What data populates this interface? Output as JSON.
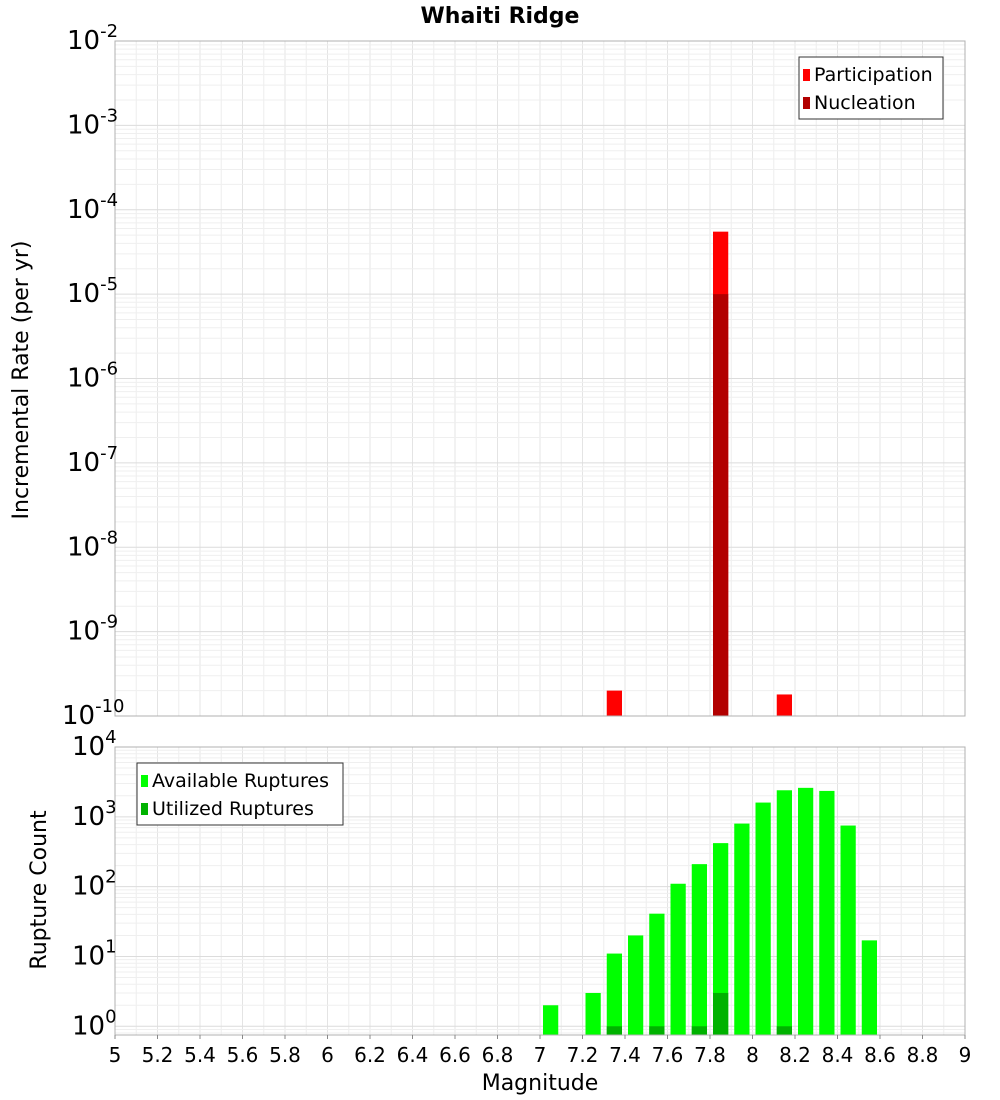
{
  "chart_data": [
    {
      "type": "bar",
      "title": "Whaiti Ridge",
      "xlabel": "",
      "ylabel": "Incremental Rate (per yr)",
      "y_scale": "log",
      "ylim": [
        1e-10,
        0.01
      ],
      "y_ticks": [
        {
          "base": "10",
          "exp": "-10"
        },
        {
          "base": "10",
          "exp": "-9"
        },
        {
          "base": "10",
          "exp": "-8"
        },
        {
          "base": "10",
          "exp": "-7"
        },
        {
          "base": "10",
          "exp": "-6"
        },
        {
          "base": "10",
          "exp": "-5"
        },
        {
          "base": "10",
          "exp": "-4"
        },
        {
          "base": "10",
          "exp": "-3"
        },
        {
          "base": "10",
          "exp": "-2"
        }
      ],
      "xlim": [
        5,
        9
      ],
      "grid": true,
      "legend_position": "top-right",
      "series": [
        {
          "name": "Participation",
          "color": "#ff0000",
          "points": [
            {
              "x": 7.35,
              "y": 2e-10
            },
            {
              "x": 7.85,
              "y": 5.5e-05
            },
            {
              "x": 8.15,
              "y": 1.8e-10
            }
          ]
        },
        {
          "name": "Nucleation",
          "color": "#b20000",
          "points": [
            {
              "x": 7.85,
              "y": 1e-05
            }
          ]
        }
      ]
    },
    {
      "type": "bar",
      "title": "",
      "xlabel": "Magnitude",
      "ylabel": "Rupture Count",
      "y_scale": "log",
      "ylim": [
        0.75,
        10000
      ],
      "y_ticks": [
        {
          "value": 1,
          "base": "10",
          "exp": "0"
        },
        {
          "value": 10,
          "base": "10",
          "exp": "1"
        },
        {
          "value": 100,
          "base": "10",
          "exp": "2"
        },
        {
          "value": 1000,
          "base": "10",
          "exp": "3"
        },
        {
          "value": 10000,
          "base": "10",
          "exp": "4"
        }
      ],
      "xlim": [
        5,
        9
      ],
      "x_ticks": [
        "5",
        "5.2",
        "5.4",
        "5.6",
        "5.8",
        "6",
        "6.2",
        "6.4",
        "6.6",
        "6.8",
        "7",
        "7.2",
        "7.4",
        "7.6",
        "7.8",
        "8",
        "8.2",
        "8.4",
        "8.6",
        "8.8",
        "9"
      ],
      "grid": true,
      "legend_position": "top-left",
      "series": [
        {
          "name": "Available Ruptures",
          "color": "#00ff00",
          "points": [
            {
              "x": 7.05,
              "y": 2
            },
            {
              "x": 7.25,
              "y": 3
            },
            {
              "x": 7.35,
              "y": 11
            },
            {
              "x": 7.45,
              "y": 20
            },
            {
              "x": 7.55,
              "y": 41
            },
            {
              "x": 7.65,
              "y": 110
            },
            {
              "x": 7.75,
              "y": 210
            },
            {
              "x": 7.85,
              "y": 420
            },
            {
              "x": 7.95,
              "y": 800
            },
            {
              "x": 8.05,
              "y": 1600
            },
            {
              "x": 8.15,
              "y": 2400
            },
            {
              "x": 8.25,
              "y": 2600
            },
            {
              "x": 8.35,
              "y": 2350
            },
            {
              "x": 8.45,
              "y": 750
            },
            {
              "x": 8.55,
              "y": 17
            }
          ]
        },
        {
          "name": "Utilized Ruptures",
          "color": "#00b200",
          "points": [
            {
              "x": 7.35,
              "y": 1
            },
            {
              "x": 7.55,
              "y": 1
            },
            {
              "x": 7.75,
              "y": 1
            },
            {
              "x": 7.85,
              "y": 3
            },
            {
              "x": 8.15,
              "y": 1
            }
          ]
        }
      ]
    }
  ]
}
